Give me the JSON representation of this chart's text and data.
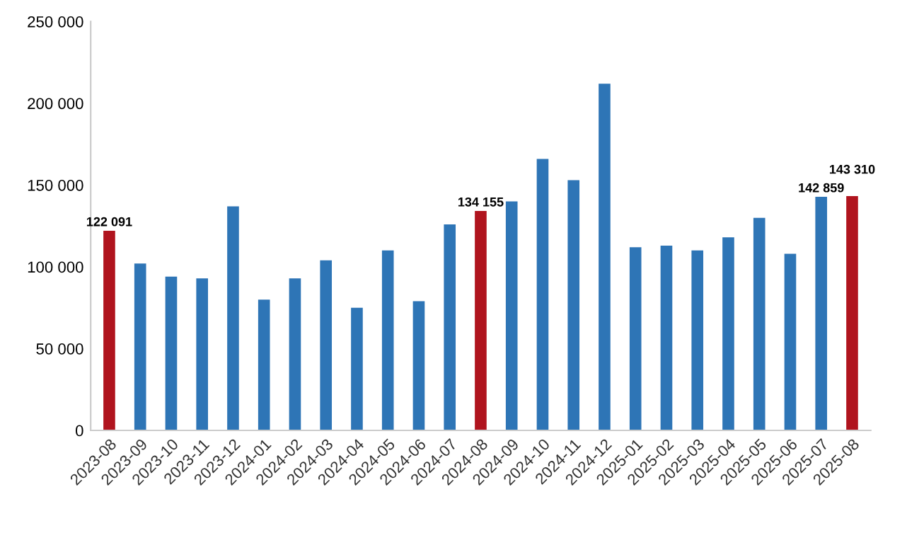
{
  "chart_data": {
    "type": "bar",
    "categories": [
      "2023-08",
      "2023-09",
      "2023-10",
      "2023-11",
      "2023-12",
      "2024-01",
      "2024-02",
      "2024-03",
      "2024-04",
      "2024-05",
      "2024-06",
      "2024-07",
      "2024-08",
      "2024-09",
      "2024-10",
      "2024-11",
      "2024-12",
      "2025-01",
      "2025-02",
      "2025-03",
      "2025-04",
      "2025-05",
      "2025-06",
      "2025-07",
      "2025-08"
    ],
    "values": [
      122091,
      102000,
      94000,
      93000,
      137000,
      80000,
      93000,
      104000,
      75000,
      110000,
      79000,
      126000,
      134155,
      140000,
      166000,
      153000,
      212000,
      112000,
      113000,
      110000,
      118000,
      130000,
      108000,
      142859,
      143310
    ],
    "colors": [
      "#b0141e",
      "#2e75b6",
      "#2e75b6",
      "#2e75b6",
      "#2e75b6",
      "#2e75b6",
      "#2e75b6",
      "#2e75b6",
      "#2e75b6",
      "#2e75b6",
      "#2e75b6",
      "#2e75b6",
      "#b0141e",
      "#2e75b6",
      "#2e75b6",
      "#2e75b6",
      "#2e75b6",
      "#2e75b6",
      "#2e75b6",
      "#2e75b6",
      "#2e75b6",
      "#2e75b6",
      "#2e75b6",
      "#2e75b6",
      "#b0141e"
    ],
    "value_labels": [
      "122 091",
      null,
      null,
      null,
      null,
      null,
      null,
      null,
      null,
      null,
      null,
      null,
      "134 155",
      null,
      null,
      null,
      null,
      null,
      null,
      null,
      null,
      null,
      null,
      "142 859",
      "143 310"
    ],
    "ylim": [
      0,
      250000
    ],
    "yticks": [
      0,
      {
        "value": 50000,
        "label": "50 000"
      },
      {
        "value": 100000,
        "label": "100 000"
      },
      {
        "value": 150000,
        "label": "150 000"
      },
      {
        "value": 200000,
        "label": "200 000"
      },
      {
        "value": 250000,
        "label": "250 000"
      }
    ],
    "grid": false,
    "legend": false
  }
}
